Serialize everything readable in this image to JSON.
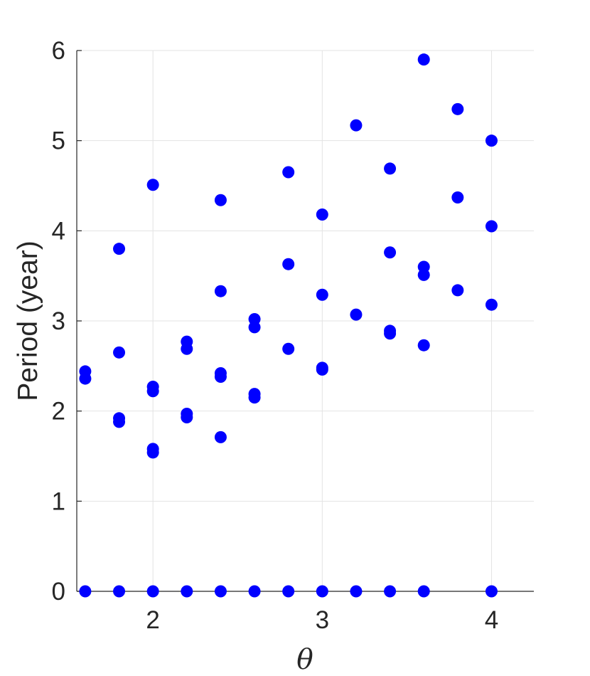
{
  "chart_data": {
    "type": "scatter",
    "title": "",
    "xlabel": "θ",
    "ylabel": "Period (year)",
    "xlim": [
      1.55,
      4.25
    ],
    "ylim": [
      0,
      6
    ],
    "xticks": [
      2,
      3,
      4
    ],
    "xtick_labels": [
      "2",
      "3",
      "4"
    ],
    "yticks": [
      0,
      1,
      2,
      3,
      4,
      5,
      6
    ],
    "ytick_labels": [
      "0",
      "1",
      "2",
      "3",
      "4",
      "5",
      "6"
    ],
    "grid": true,
    "marker_color": "#0000ff",
    "points": [
      {
        "x": 1.6,
        "y": 0
      },
      {
        "x": 1.6,
        "y": 2.36
      },
      {
        "x": 1.6,
        "y": 2.44
      },
      {
        "x": 1.8,
        "y": 0
      },
      {
        "x": 1.8,
        "y": 1.88
      },
      {
        "x": 1.8,
        "y": 1.92
      },
      {
        "x": 1.8,
        "y": 2.65
      },
      {
        "x": 1.8,
        "y": 3.8
      },
      {
        "x": 2.0,
        "y": 0
      },
      {
        "x": 2.0,
        "y": 1.54
      },
      {
        "x": 2.0,
        "y": 1.58
      },
      {
        "x": 2.0,
        "y": 2.22
      },
      {
        "x": 2.0,
        "y": 2.27
      },
      {
        "x": 2.0,
        "y": 4.51
      },
      {
        "x": 2.2,
        "y": 0
      },
      {
        "x": 2.2,
        "y": 1.93
      },
      {
        "x": 2.2,
        "y": 1.97
      },
      {
        "x": 2.2,
        "y": 2.69
      },
      {
        "x": 2.2,
        "y": 2.77
      },
      {
        "x": 2.4,
        "y": 0
      },
      {
        "x": 2.4,
        "y": 1.71
      },
      {
        "x": 2.4,
        "y": 2.38
      },
      {
        "x": 2.4,
        "y": 2.42
      },
      {
        "x": 2.4,
        "y": 3.33
      },
      {
        "x": 2.4,
        "y": 4.34
      },
      {
        "x": 2.6,
        "y": 0
      },
      {
        "x": 2.6,
        "y": 2.15
      },
      {
        "x": 2.6,
        "y": 2.19
      },
      {
        "x": 2.6,
        "y": 2.93
      },
      {
        "x": 2.6,
        "y": 3.02
      },
      {
        "x": 2.8,
        "y": 0
      },
      {
        "x": 2.8,
        "y": 2.69
      },
      {
        "x": 2.8,
        "y": 3.63
      },
      {
        "x": 2.8,
        "y": 4.65
      },
      {
        "x": 3.0,
        "y": 0
      },
      {
        "x": 3.0,
        "y": 2.46
      },
      {
        "x": 3.0,
        "y": 2.48
      },
      {
        "x": 3.0,
        "y": 3.29
      },
      {
        "x": 3.0,
        "y": 4.18
      },
      {
        "x": 3.2,
        "y": 0
      },
      {
        "x": 3.2,
        "y": 3.07
      },
      {
        "x": 3.2,
        "y": 5.17
      },
      {
        "x": 3.4,
        "y": 0
      },
      {
        "x": 3.4,
        "y": 2.86
      },
      {
        "x": 3.4,
        "y": 2.89
      },
      {
        "x": 3.4,
        "y": 3.76
      },
      {
        "x": 3.4,
        "y": 4.69
      },
      {
        "x": 3.6,
        "y": 0
      },
      {
        "x": 3.6,
        "y": 2.73
      },
      {
        "x": 3.6,
        "y": 3.51
      },
      {
        "x": 3.6,
        "y": 3.6
      },
      {
        "x": 3.6,
        "y": 5.9
      },
      {
        "x": 3.8,
        "y": 3.34
      },
      {
        "x": 3.8,
        "y": 4.37
      },
      {
        "x": 3.8,
        "y": 5.35
      },
      {
        "x": 4.0,
        "y": 0
      },
      {
        "x": 4.0,
        "y": 3.18
      },
      {
        "x": 4.0,
        "y": 4.05
      },
      {
        "x": 4.0,
        "y": 5.0
      }
    ]
  }
}
